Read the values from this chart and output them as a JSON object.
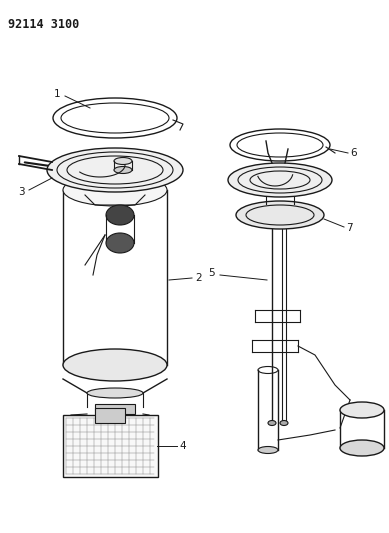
{
  "title": "92114 3100",
  "background_color": "#ffffff",
  "line_color": "#1a1a1a",
  "text_color": "#1a1a1a",
  "fig_width": 3.89,
  "fig_height": 5.33,
  "dpi": 100
}
